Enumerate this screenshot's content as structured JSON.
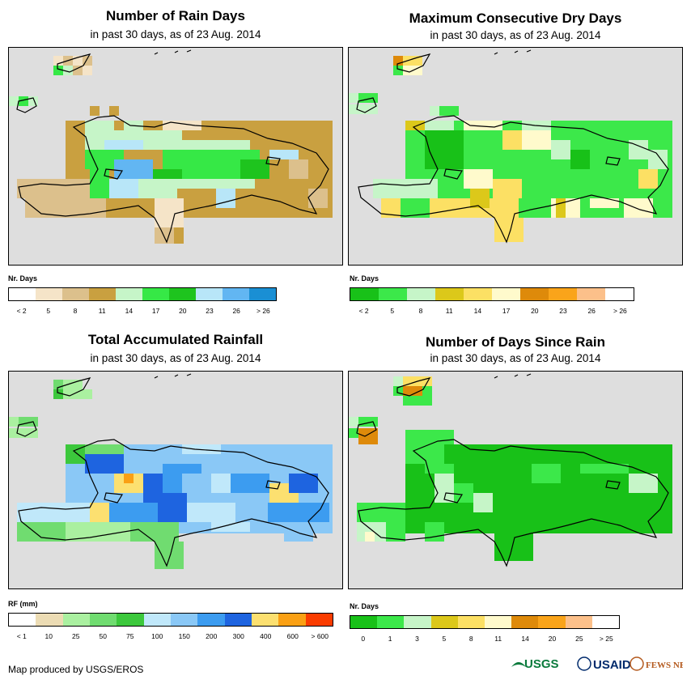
{
  "panels": [
    {
      "id": "rain-days",
      "title": "Number of Rain Days",
      "subtitle": "in past 30 days, as of 23 Aug. 2014",
      "legend": {
        "label": "Nr. Days",
        "colors": [
          "#ffffff",
          "#f5e4c8",
          "#dcc08c",
          "#c9a040",
          "#c6f5c8",
          "#36e846",
          "#1ec41e",
          "#b8e6f8",
          "#62b6f2",
          "#1a8fd4"
        ],
        "ticks": [
          "< 2",
          "5",
          "8",
          "11",
          "14",
          "17",
          "20",
          "23",
          "26",
          "> 26"
        ]
      }
    },
    {
      "id": "dry-days",
      "title": "Maximum Consecutive Dry Days",
      "subtitle": "in past 30 days, as of 23 Aug. 2014",
      "legend": {
        "label": "Nr. Days",
        "colors": [
          "#18c118",
          "#3ce84a",
          "#c6f5c8",
          "#dcc81a",
          "#fce064",
          "#fffacc",
          "#de8a0a",
          "#faa41a",
          "#fcc08a",
          "#ffffff"
        ],
        "ticks": [
          "< 2",
          "5",
          "8",
          "11",
          "14",
          "17",
          "20",
          "23",
          "26",
          "> 26"
        ]
      }
    },
    {
      "id": "rainfall",
      "title": "Total Accumulated Rainfall",
      "subtitle": "in past 30 days, as of 23 Aug. 2014",
      "legend": {
        "label": "RF (mm)",
        "colors": [
          "#ffffff",
          "#ecdcb4",
          "#aaf0a0",
          "#70dc70",
          "#3cc83c",
          "#c0e8fa",
          "#8ac8f6",
          "#3c9cf0",
          "#1e64e0",
          "#fce070",
          "#faa014",
          "#fa3c00"
        ],
        "ticks": [
          "< 1",
          "10",
          "25",
          "50",
          "75",
          "100",
          "150",
          "200",
          "300",
          "400",
          "600",
          "> 600"
        ]
      }
    },
    {
      "id": "days-since-rain",
      "title": "Number of Days Since Rain",
      "subtitle": "in past 30 days, as of 23 Aug. 2014",
      "legend": {
        "label": "Nr. Days",
        "colors": [
          "#18c118",
          "#3ce84a",
          "#c6f5c8",
          "#dcc81a",
          "#fce064",
          "#fffacc",
          "#de8a0a",
          "#faa41a",
          "#fcc08a",
          "#ffffff"
        ],
        "ticks": [
          "0",
          "1",
          "3",
          "5",
          "8",
          "11",
          "14",
          "20",
          "25",
          "> 25"
        ]
      }
    }
  ],
  "credit": "Map produced by USGS/EROS",
  "logos": [
    "USGS",
    "USAID",
    "FEWS NET"
  ],
  "colors": {
    "map_background": "#dedede",
    "coastline": "#000000"
  }
}
